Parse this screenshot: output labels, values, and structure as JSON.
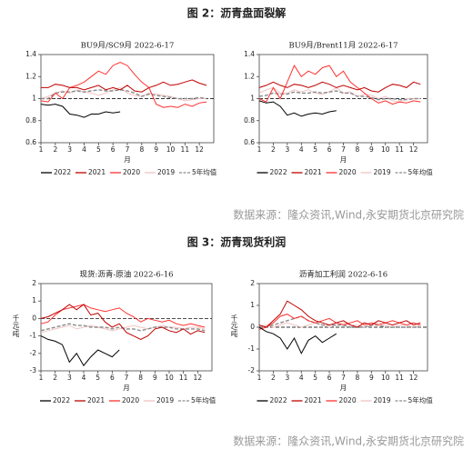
{
  "figure_titles": [
    "图 2：沥青盘面裂解",
    "图 3：沥青现货利润"
  ],
  "sources": [
    "数据来源：隆众资讯,Wind,永安期货北京研究院",
    "数据来源：隆众资讯,Wind,永安期货北京研究院"
  ],
  "chart_data": [
    {
      "type": "line",
      "title": "BU9月/SC9月 2022-6-17",
      "x_label": "月",
      "x": [
        1,
        1.5,
        2,
        2.5,
        3,
        3.5,
        4,
        4.5,
        5,
        5.5,
        6,
        6.5,
        7,
        7.5,
        8,
        8.5,
        9,
        9.5,
        10,
        10.5,
        11,
        11.5,
        12,
        12.5
      ],
      "xlim": [
        1,
        13
      ],
      "xticks": [
        1,
        2,
        3,
        4,
        5,
        6,
        7,
        8,
        9,
        10,
        11,
        12
      ],
      "ylim": [
        0.6,
        1.4
      ],
      "yticks": [
        0.6,
        0.8,
        1,
        1.2,
        1.4
      ],
      "reference_line": 1,
      "legend": "bottom",
      "series": [
        {
          "name": "2022",
          "color": "#000000",
          "values": [
            0.95,
            0.94,
            0.95,
            0.93,
            0.86,
            0.85,
            0.83,
            0.86,
            0.86,
            0.88,
            0.87,
            0.88,
            null,
            null,
            null,
            null,
            null,
            null,
            null,
            null,
            null,
            null,
            null,
            null
          ]
        },
        {
          "name": "2021",
          "color": "#c00000",
          "values": [
            1.1,
            1.1,
            1.13,
            1.12,
            1.1,
            1.1,
            1.08,
            1.1,
            1.12,
            1.08,
            1.1,
            1.08,
            1.12,
            1.07,
            1.06,
            1.1,
            1.12,
            1.15,
            1.12,
            1.13,
            1.15,
            1.17,
            1.14,
            1.12
          ]
        },
        {
          "name": "2020",
          "color": "#ff3030",
          "values": [
            0.98,
            0.97,
            1.05,
            1.0,
            1.1,
            1.12,
            1.15,
            1.2,
            1.25,
            1.22,
            1.3,
            1.33,
            1.3,
            1.22,
            1.15,
            1.1,
            0.95,
            0.92,
            0.93,
            0.92,
            0.95,
            0.93,
            0.96,
            0.97
          ]
        },
        {
          "name": "2019",
          "color": "#f2c4c4",
          "values": [
            1.0,
            1.02,
            1.05,
            1.07,
            1.05,
            1.08,
            1.06,
            1.05,
            1.03,
            1.05,
            1.08,
            1.1,
            1.05,
            1.03,
            1.02,
            1.05,
            1.04,
            1.03,
            1.02,
            1.0,
            0.98,
            0.99,
            1.0,
            1.0
          ]
        },
        {
          "name": "5年均值",
          "color": "#8c8c8c",
          "dash": true,
          "values": [
            1.0,
            1.0,
            1.05,
            1.06,
            1.06,
            1.07,
            1.06,
            1.07,
            1.08,
            1.07,
            1.07,
            1.08,
            1.07,
            1.05,
            1.02,
            1.04,
            1.03,
            1.02,
            1.01,
            1.0,
            1.0,
            1.0,
            1.01,
            1.0
          ]
        }
      ]
    },
    {
      "type": "line",
      "title": "BU9月/Brent11月 2022-6-17",
      "x_label": "月",
      "x": [
        1,
        1.5,
        2,
        2.5,
        3,
        3.5,
        4,
        4.5,
        5,
        5.5,
        6,
        6.5,
        7,
        7.5,
        8,
        8.5,
        9,
        9.5,
        10,
        10.5,
        11,
        11.5,
        12,
        12.5
      ],
      "xlim": [
        1,
        13
      ],
      "xticks": [
        1,
        2,
        3,
        4,
        5,
        6,
        7,
        8,
        9,
        10,
        11,
        12
      ],
      "ylim": [
        0.6,
        1.4
      ],
      "yticks": [
        0.6,
        0.8,
        1,
        1.2,
        1.4
      ],
      "reference_line": 1,
      "legend": "bottom",
      "series": [
        {
          "name": "2022",
          "color": "#000000",
          "values": [
            0.98,
            0.96,
            0.97,
            0.93,
            0.85,
            0.87,
            0.84,
            0.86,
            0.87,
            0.86,
            0.88,
            0.89,
            null,
            null,
            null,
            null,
            null,
            null,
            null,
            null,
            null,
            null,
            null,
            null
          ]
        },
        {
          "name": "2021",
          "color": "#c00000",
          "values": [
            1.1,
            1.12,
            1.15,
            1.12,
            1.1,
            1.13,
            1.12,
            1.1,
            1.12,
            1.15,
            1.13,
            1.1,
            1.12,
            1.1,
            1.08,
            1.1,
            1.07,
            1.06,
            1.1,
            1.13,
            1.12,
            1.1,
            1.15,
            1.13
          ]
        },
        {
          "name": "2020",
          "color": "#ff3030",
          "values": [
            1.0,
            0.97,
            1.1,
            1.0,
            1.15,
            1.3,
            1.2,
            1.25,
            1.22,
            1.28,
            1.3,
            1.2,
            1.25,
            1.15,
            1.1,
            1.05,
            1.0,
            0.96,
            0.98,
            0.95,
            0.97,
            0.96,
            0.98,
            0.97
          ]
        },
        {
          "name": "2019",
          "color": "#f2c4c4",
          "values": [
            1.05,
            1.08,
            1.1,
            1.05,
            1.05,
            1.08,
            1.06,
            1.08,
            1.05,
            1.04,
            1.06,
            1.1,
            1.05,
            1.06,
            1.02,
            1.04,
            1.03,
            1.0,
            1.02,
            0.98,
            0.97,
            1.0,
            1.0,
            1.0
          ]
        },
        {
          "name": "5年均值",
          "color": "#8c8c8c",
          "dash": true,
          "values": [
            1.02,
            1.03,
            1.05,
            1.04,
            1.04,
            1.06,
            1.05,
            1.05,
            1.06,
            1.05,
            1.06,
            1.07,
            1.05,
            1.05,
            1.02,
            1.02,
            1.01,
            0.99,
            1.0,
            1.0,
            0.99,
            0.99,
            1.0,
            1.0
          ]
        }
      ]
    },
    {
      "type": "line",
      "title": "现货:沥青-原油 2022-6-16",
      "x_label": "月",
      "y_label": "千元/吨",
      "x": [
        1,
        1.5,
        2,
        2.5,
        3,
        3.5,
        4,
        4.5,
        5,
        5.5,
        6,
        6.5,
        7,
        7.5,
        8,
        8.5,
        9,
        9.5,
        10,
        10.5,
        11,
        11.5,
        12,
        12.5
      ],
      "xlim": [
        1,
        13
      ],
      "xticks": [
        1,
        2,
        3,
        4,
        5,
        6,
        7,
        8,
        9,
        10,
        11,
        12
      ],
      "ylim": [
        -3,
        2
      ],
      "yticks": [
        -3,
        -2,
        -1,
        0,
        1,
        2
      ],
      "reference_line": 0,
      "legend": "bottom",
      "series": [
        {
          "name": "2022",
          "color": "#000000",
          "values": [
            -1.0,
            -1.2,
            -1.3,
            -1.5,
            -2.5,
            -2.0,
            -2.7,
            -2.2,
            -1.8,
            -2.0,
            -2.2,
            -1.8,
            null,
            null,
            null,
            null,
            null,
            null,
            null,
            null,
            null,
            null,
            null,
            null
          ]
        },
        {
          "name": "2021",
          "color": "#c00000",
          "values": [
            0,
            0.1,
            0.3,
            0.5,
            0.8,
            0.5,
            0.8,
            0.2,
            0.3,
            -0.2,
            -0.5,
            -0.3,
            -0.8,
            -1.0,
            -1.2,
            -1.0,
            -0.6,
            -0.5,
            -0.7,
            -0.8,
            -0.6,
            -0.9,
            -0.7,
            -0.8
          ]
        },
        {
          "name": "2020",
          "color": "#ff3030",
          "values": [
            -0.3,
            -0.2,
            0.2,
            0.5,
            0.6,
            0.7,
            0.8,
            0.6,
            0.5,
            0.4,
            0.5,
            0.6,
            0.3,
            0.1,
            -0.2,
            0,
            -0.1,
            -0.2,
            -0.1,
            -0.3,
            -0.4,
            -0.3,
            -0.4,
            -0.5
          ]
        },
        {
          "name": "2019",
          "color": "#f2c4c4",
          "values": [
            -0.8,
            -0.7,
            -0.6,
            -0.5,
            -0.4,
            -0.6,
            -0.5,
            -0.4,
            -0.5,
            -0.6,
            -0.7,
            -0.6,
            -0.5,
            -0.4,
            -0.5,
            -0.6,
            -0.5,
            -0.4,
            -0.5,
            -0.5,
            -0.6,
            -0.5,
            -0.5,
            -0.6
          ]
        },
        {
          "name": "5年均值",
          "color": "#8c8c8c",
          "dash": true,
          "values": [
            -0.7,
            -0.6,
            -0.5,
            -0.4,
            -0.3,
            -0.4,
            -0.4,
            -0.5,
            -0.5,
            -0.5,
            -0.6,
            -0.5,
            -0.6,
            -0.6,
            -0.7,
            -0.6,
            -0.5,
            -0.5,
            -0.5,
            -0.6,
            -0.6,
            -0.6,
            -0.6,
            -0.7
          ]
        }
      ]
    },
    {
      "type": "line",
      "title": "沥青加工利润 2022-6-16",
      "x_label": "月",
      "y_label": "千元/吨",
      "x": [
        1,
        1.5,
        2,
        2.5,
        3,
        3.5,
        4,
        4.5,
        5,
        5.5,
        6,
        6.5,
        7,
        7.5,
        8,
        8.5,
        9,
        9.5,
        10,
        10.5,
        11,
        11.5,
        12,
        12.5
      ],
      "xlim": [
        1,
        13
      ],
      "xticks": [
        1,
        2,
        3,
        4,
        5,
        6,
        7,
        8,
        9,
        10,
        11,
        12
      ],
      "ylim": [
        -2,
        2
      ],
      "yticks": [
        -2,
        -1,
        0,
        1,
        2
      ],
      "reference_line": 0,
      "legend": "bottom",
      "series": [
        {
          "name": "2022",
          "color": "#000000",
          "values": [
            0,
            -0.2,
            -0.3,
            -0.5,
            -1.0,
            -0.5,
            -1.2,
            -0.6,
            -0.4,
            -0.7,
            -0.5,
            -0.3,
            null,
            null,
            null,
            null,
            null,
            null,
            null,
            null,
            null,
            null,
            null,
            null
          ]
        },
        {
          "name": "2021",
          "color": "#c00000",
          "values": [
            0.1,
            0,
            0.3,
            0.6,
            1.2,
            1.0,
            0.8,
            0.5,
            0.3,
            0.2,
            0.1,
            0.2,
            0.3,
            0.1,
            0,
            0.2,
            0.1,
            0.3,
            0.2,
            0.1,
            0.2,
            0.3,
            0.1,
            0.2
          ]
        },
        {
          "name": "2020",
          "color": "#ff3030",
          "values": [
            -0.1,
            0,
            0.2,
            0.5,
            0.6,
            0.4,
            0.5,
            0.3,
            0.2,
            0.3,
            0.4,
            0.2,
            0.1,
            0.2,
            0.3,
            0.1,
            0.2,
            0.1,
            0.2,
            0.3,
            0.2,
            0.1,
            0.2,
            0.1
          ]
        },
        {
          "name": "2019",
          "color": "#f2c4c4",
          "values": [
            0,
            0.1,
            0,
            0.1,
            0.2,
            0.1,
            0,
            0.1,
            0.2,
            0.1,
            0,
            0.1,
            0.2,
            0.1,
            0.1,
            0,
            0.1,
            0.2,
            0.1,
            0,
            0.1,
            0.1,
            0,
            0.1
          ]
        },
        {
          "name": "5年均值",
          "color": "#8c8c8c",
          "dash": true,
          "values": [
            0,
            0,
            0.1,
            0.2,
            0.3,
            0.4,
            0.5,
            0.3,
            0.2,
            0.1,
            0.1,
            0.1,
            0.1,
            0,
            0,
            0,
            0.1,
            0.1,
            0,
            0,
            0,
            0,
            0,
            0
          ]
        }
      ]
    }
  ]
}
